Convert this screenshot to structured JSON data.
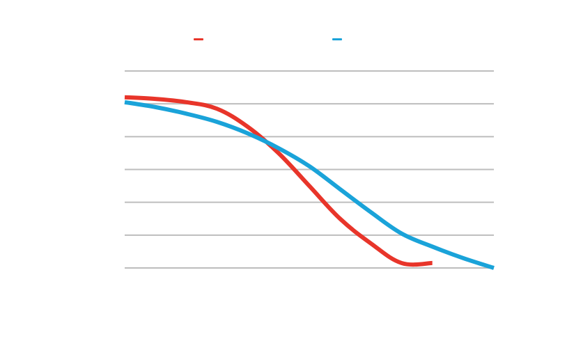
{
  "chart_data": {
    "type": "line",
    "title": "",
    "xlabel": "",
    "ylabel": "",
    "grid": true,
    "legend_position": "top-center",
    "xlim": [
      0,
      12
    ],
    "ylim": [
      0,
      6
    ],
    "yticks": [
      0,
      1,
      2,
      3,
      4,
      5,
      6
    ],
    "series": [
      {
        "name": "",
        "color": "#e8352a",
        "x": [
          0,
          1,
          2,
          3,
          4,
          5,
          6,
          7,
          8,
          9,
          10
        ],
        "y": [
          5.2,
          5.15,
          5.05,
          4.85,
          4.3,
          3.5,
          2.5,
          1.5,
          0.75,
          0.15,
          0.15
        ]
      },
      {
        "name": "",
        "color": "#1aa3d9",
        "x": [
          0,
          1,
          2,
          3,
          4,
          5,
          6,
          7,
          8,
          9,
          10,
          11,
          12
        ],
        "y": [
          5.05,
          4.9,
          4.7,
          4.45,
          4.1,
          3.65,
          3.1,
          2.4,
          1.7,
          1.05,
          0.65,
          0.3,
          0.0
        ]
      }
    ]
  }
}
